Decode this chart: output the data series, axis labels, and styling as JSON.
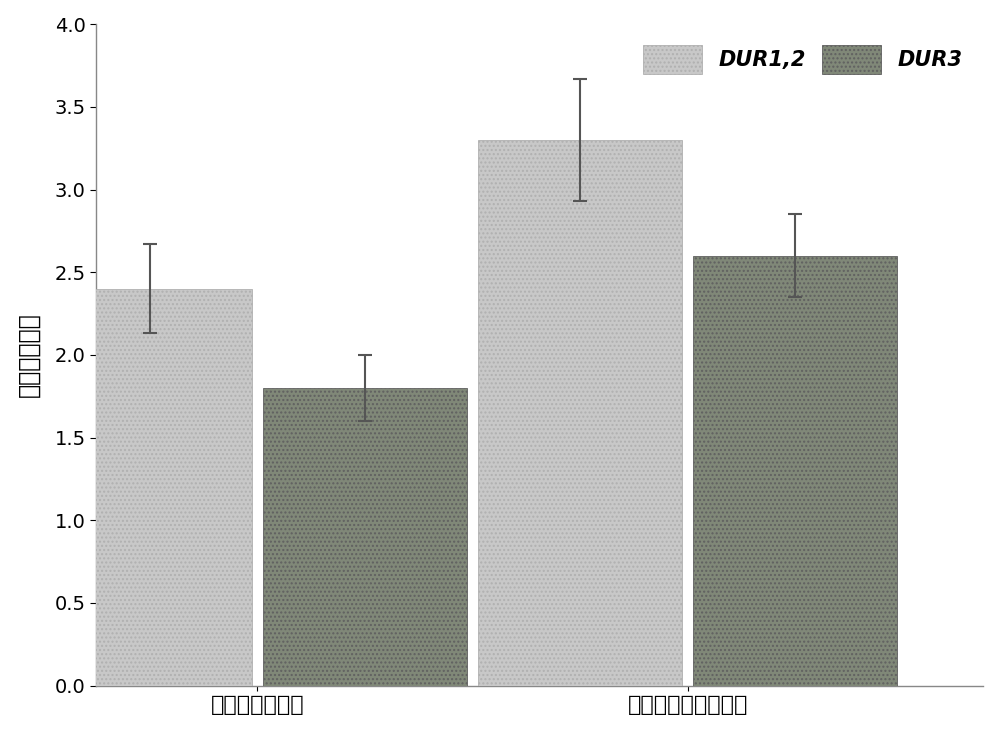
{
  "groups": [
    "核定位序列突变",
    "核定位调控序列缺失"
  ],
  "series": [
    "DUR1,2",
    "DUR3"
  ],
  "values": [
    [
      2.4,
      1.8
    ],
    [
      3.3,
      2.6
    ]
  ],
  "errors": [
    [
      0.27,
      0.2
    ],
    [
      0.37,
      0.25
    ]
  ],
  "bar_color_light": "#c8c8c8",
  "bar_color_dark": "#808878",
  "bar_edge_light": "#b0b0b0",
  "bar_edge_dark": "#606060",
  "ylabel": "基因变化倍数",
  "ylim": [
    0.0,
    4.0
  ],
  "yticks": [
    0.0,
    0.5,
    1.0,
    1.5,
    2.0,
    2.5,
    3.0,
    3.5,
    4.0
  ],
  "bar_width": 0.38,
  "group_positions": [
    0.3,
    1.1
  ],
  "legend_fontsize": 15,
  "ylabel_fontsize": 17,
  "tick_fontsize": 14,
  "xtick_fontsize": 16,
  "background_color": "#ffffff",
  "error_capsize": 5,
  "error_linewidth": 1.5
}
